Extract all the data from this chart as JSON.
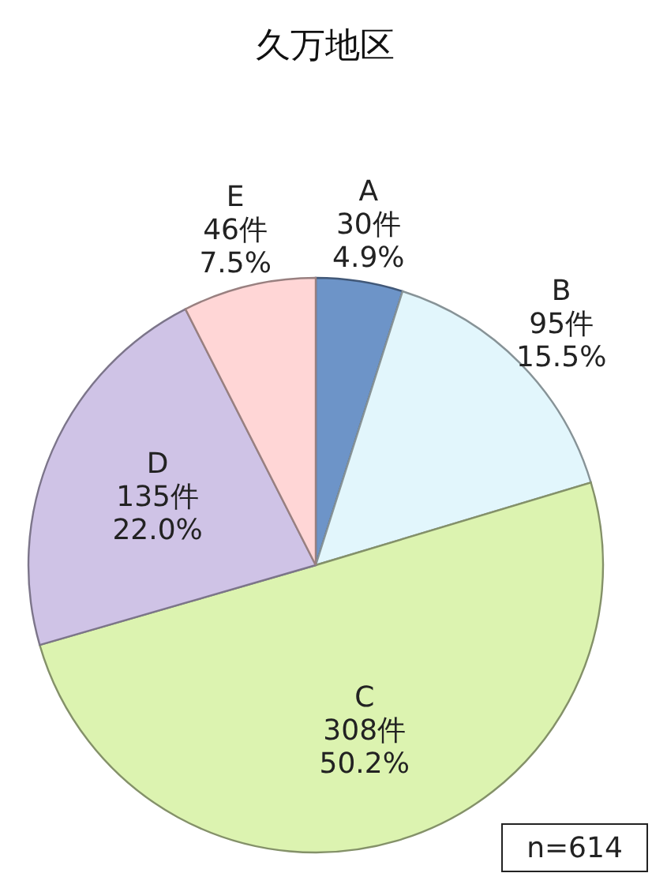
{
  "chart_data": {
    "type": "pie",
    "title": "久万地区",
    "categories": [
      "A",
      "B",
      "C",
      "D",
      "E"
    ],
    "values": [
      30,
      95,
      308,
      135,
      46
    ],
    "value_labels": [
      "30件\n4.9%",
      "95件\n15.5%",
      "308件\n50.2%",
      "135件\n22.0%",
      "46件\n7.5%"
    ],
    "colors": [
      "#6d94c8",
      "#e2f6fc",
      "#dcf3b0",
      "#cfc3e6",
      "#ffd6d6"
    ],
    "annotations": [
      "n=614"
    ]
  }
}
